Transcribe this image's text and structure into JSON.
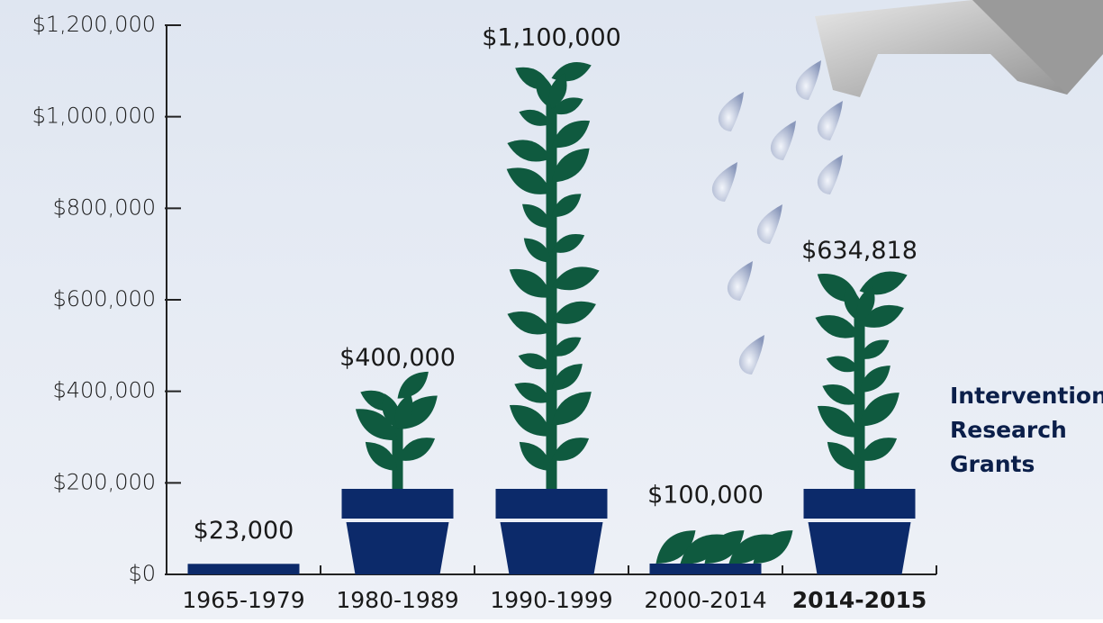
{
  "chart_data": {
    "type": "pictograph",
    "categories": [
      "1965-1979",
      "1980-1989",
      "1990-1999",
      "2000-2014",
      "2014-2015"
    ],
    "values": [
      23000,
      400000,
      1100000,
      100000,
      634818
    ],
    "value_labels": [
      "$23,000",
      "$400,000",
      "$1,100,000",
      "$100,000",
      "$634,818"
    ],
    "ylim": [
      0,
      1200000
    ],
    "yticks": [
      {
        "value": 0,
        "label": "$0"
      },
      {
        "value": 200000,
        "label": "$200,000"
      },
      {
        "value": 400000,
        "label": "$400,000"
      },
      {
        "value": 600000,
        "label": "$600,000"
      },
      {
        "value": 800000,
        "label": "$800,000"
      },
      {
        "value": 1000000,
        "label": "$1,000,000"
      },
      {
        "value": 1200000,
        "label": "$1,200,000"
      }
    ],
    "annotation": [
      "Intervention",
      "Research",
      "Grants"
    ],
    "plant_color": "#0f5a3f",
    "pot_color": "#0c2a6a"
  }
}
